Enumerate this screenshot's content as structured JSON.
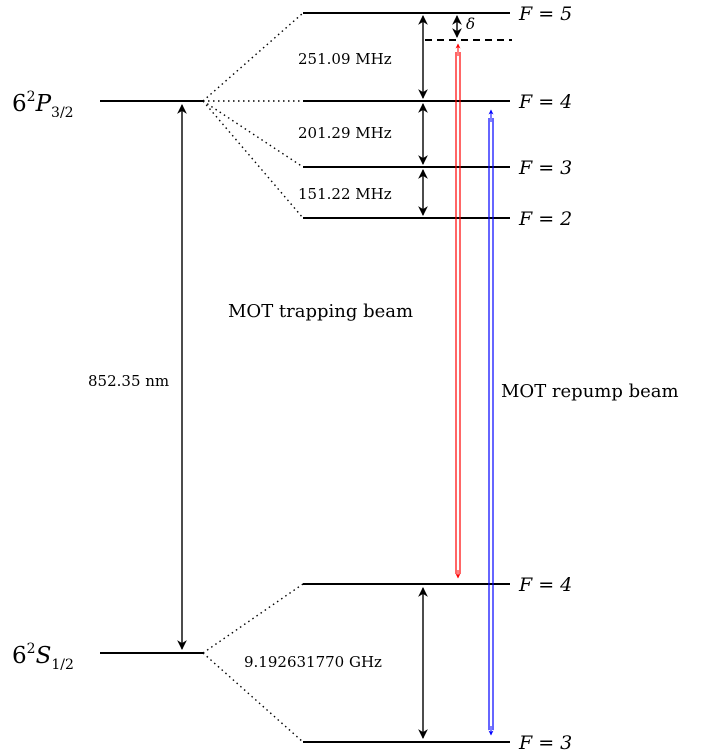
{
  "excited_state": {
    "prefix": "6",
    "sup": "2",
    "letter": "P",
    "sub": "3/2"
  },
  "ground_state": {
    "prefix": "6",
    "sup": "2",
    "letter": "S",
    "sub": "1/2"
  },
  "excited_levels": [
    {
      "F": "F = 5"
    },
    {
      "F": "F = 4"
    },
    {
      "F": "F = 3"
    },
    {
      "F": "F = 2"
    }
  ],
  "ground_levels": [
    {
      "F": "F = 4"
    },
    {
      "F": "F = 3"
    }
  ],
  "splittings": {
    "f5_f4": "251.09 MHz",
    "f4_f3": "201.29 MHz",
    "f3_f2": "151.22 MHz",
    "ground": "9.192631770 GHz"
  },
  "detuning_label": "δ",
  "optical_transition": "852.35 nm",
  "beams": {
    "trapping": {
      "label": "MOT trapping beam",
      "color": "#ff0000"
    },
    "repump": {
      "label": "MOT repump beam",
      "color": "#0000ff"
    }
  }
}
